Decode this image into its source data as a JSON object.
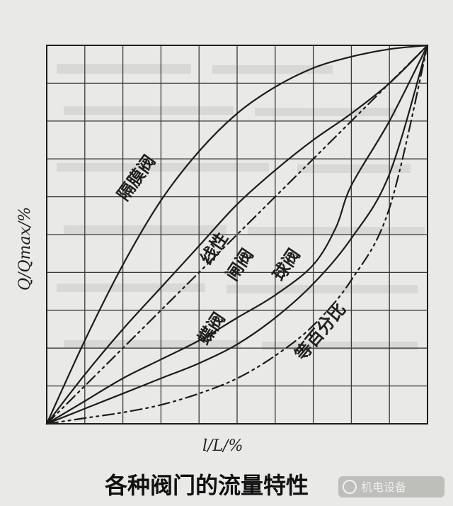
{
  "chart_data": {
    "type": "line",
    "title": "各种阀门的流量特性",
    "xlabel": "l/L/%",
    "ylabel": "Q/Qmax/%",
    "xlim": [
      0,
      100
    ],
    "ylim": [
      0,
      100
    ],
    "grid": true,
    "series": [
      {
        "name": "隔膜阀",
        "style": "solid",
        "x": [
          0,
          10,
          20,
          30,
          40,
          50,
          60,
          70,
          80,
          90,
          100
        ],
        "y": [
          0,
          22,
          42,
          59,
          72,
          82,
          89,
          94,
          97,
          99,
          100
        ]
      },
      {
        "name": "线性",
        "style": "dashdot",
        "x": [
          0,
          100
        ],
        "y": [
          0,
          100
        ]
      },
      {
        "name": "闸阀",
        "style": "solid",
        "x": [
          0,
          10,
          20,
          30,
          40,
          50,
          60,
          70,
          80,
          90,
          100
        ],
        "y": [
          0,
          13,
          25,
          36,
          47,
          58,
          67,
          75,
          82,
          90,
          100
        ]
      },
      {
        "name": "球阀",
        "style": "solid",
        "x": [
          0,
          10,
          20,
          30,
          40,
          50,
          60,
          70,
          76,
          80,
          90,
          100
        ],
        "y": [
          0,
          6,
          12,
          17,
          22,
          28,
          34,
          42,
          52,
          63,
          80,
          100
        ]
      },
      {
        "name": "蝶阀",
        "style": "solid",
        "x": [
          0,
          10,
          20,
          30,
          40,
          50,
          60,
          70,
          80,
          90,
          100
        ],
        "y": [
          0,
          4,
          8,
          12,
          16,
          21,
          28,
          37,
          49,
          66,
          100
        ]
      },
      {
        "name": "等百分比",
        "style": "dashdot",
        "x": [
          0,
          10,
          20,
          30,
          40,
          50,
          60,
          70,
          80,
          90,
          100
        ],
        "y": [
          0,
          1.5,
          3,
          5,
          8,
          12,
          18,
          26,
          38,
          57,
          100
        ]
      }
    ]
  },
  "watermark": "机电设备"
}
